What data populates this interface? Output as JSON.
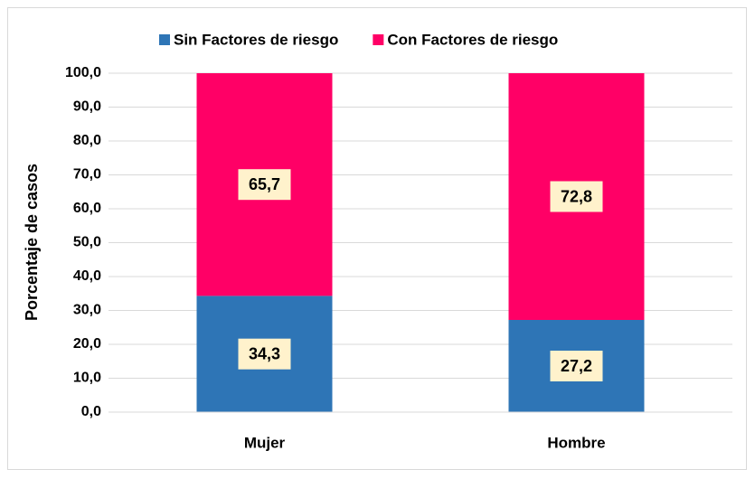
{
  "chart_data": {
    "type": "stacked_bar",
    "y_label": "Porcentaje de casos",
    "categories": [
      "Mujer",
      "Hombre"
    ],
    "series": [
      {
        "name": "Sin Factores de riesgo",
        "color": "#2e75b6",
        "values": [
          34.3,
          27.2
        ],
        "value_labels": [
          "34,3",
          "27,2"
        ]
      },
      {
        "name": "Con Factores de riesgo",
        "color": "#ff0066",
        "values": [
          65.7,
          72.8
        ],
        "value_labels": [
          "65,7",
          "72,8"
        ]
      }
    ],
    "ylim": [
      0,
      100
    ],
    "yticks": [
      {
        "value": 0,
        "label": "0,0"
      },
      {
        "value": 10,
        "label": "10,0"
      },
      {
        "value": 20,
        "label": "20,0"
      },
      {
        "value": 30,
        "label": "30,0"
      },
      {
        "value": 40,
        "label": "40,0"
      },
      {
        "value": 50,
        "label": "50,0"
      },
      {
        "value": 60,
        "label": "60,0"
      },
      {
        "value": 70,
        "label": "70,0"
      },
      {
        "value": 80,
        "label": "80,0"
      },
      {
        "value": 90,
        "label": "90,0"
      },
      {
        "value": 100,
        "label": "100,0"
      }
    ],
    "grid": true,
    "legend": "top"
  }
}
